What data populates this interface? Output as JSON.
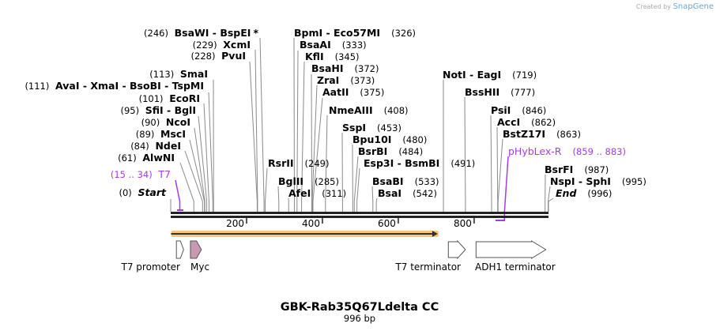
{
  "credit": {
    "created_by": "Created by",
    "brand": "SnapGene"
  },
  "title": "GBK-Rab35Q67Ldelta CC",
  "length_label": "996 bp",
  "sequence_length": 996,
  "left_sites": [
    {
      "pos": "(246)",
      "name": "BsaWI  - BspEI",
      "mark": "*",
      "bp": 246
    },
    {
      "pos": "(229)",
      "name": "XcmI",
      "bp": 229
    },
    {
      "pos": "(228)",
      "name": "PvuI",
      "bp": 228
    },
    {
      "pos": "(113)",
      "name": "SmaI",
      "bp": 113
    },
    {
      "pos": "(111)",
      "name": "AvaI  - XmaI  - BsoBI  - TspMI",
      "bp": 111
    },
    {
      "pos": "(101)",
      "name": "EcoRI",
      "bp": 101
    },
    {
      "pos": "(95)",
      "name": "SfiI  - BglI",
      "bp": 95
    },
    {
      "pos": "(90)",
      "name": "NcoI",
      "bp": 90
    },
    {
      "pos": "(89)",
      "name": "MscI",
      "bp": 89
    },
    {
      "pos": "(84)",
      "name": "NdeI",
      "bp": 84
    },
    {
      "pos": "(61)",
      "name": "AlwNI",
      "bp": 61
    },
    {
      "pos": "(15 .. 34)",
      "name": "T7",
      "bp": 24,
      "primer": true
    },
    {
      "pos": "(0)",
      "name": "Start",
      "bp": 0,
      "italic": true
    }
  ],
  "right_sites": [
    {
      "name": "BpmI  - Eco57MI",
      "pos": "(326)",
      "bp": 326
    },
    {
      "name": "BsaAI",
      "pos": "(333)",
      "bp": 333
    },
    {
      "name": "KflI",
      "pos": "(345)",
      "bp": 345
    },
    {
      "name": "BsaHI",
      "pos": "(372)",
      "bp": 372
    },
    {
      "name": "ZraI",
      "pos": "(373)",
      "bp": 373
    },
    {
      "name": "AatII",
      "pos": "(375)",
      "bp": 375
    },
    {
      "name": "NmeAIII",
      "pos": "(408)",
      "bp": 408
    },
    {
      "name": "SspI",
      "pos": "(453)",
      "bp": 453
    },
    {
      "name": "Bpu10I",
      "pos": "(480)",
      "bp": 480
    },
    {
      "name": "BsrBI",
      "pos": "(484)",
      "bp": 484
    },
    {
      "name": "Esp3I  - BsmBI",
      "pos": "(491)",
      "bp": 491
    },
    {
      "name": "RsrII",
      "pos": "(249)",
      "bp": 249
    },
    {
      "name": "BglII",
      "pos": "(285)",
      "bp": 285
    },
    {
      "name": "AfeI",
      "pos": "(311)",
      "bp": 311
    },
    {
      "name": "BsaBI",
      "pos": "(533)",
      "bp": 533
    },
    {
      "name": "BsaI",
      "pos": "(542)",
      "bp": 542
    },
    {
      "name": "NotI  - EagI",
      "pos": "(719)",
      "bp": 719
    },
    {
      "name": "BssHII",
      "pos": "(777)",
      "bp": 777
    },
    {
      "name": "PsiI",
      "pos": "(846)",
      "bp": 846
    },
    {
      "name": "AccI",
      "pos": "(862)",
      "bp": 862
    },
    {
      "name": "BstZ17I",
      "pos": "(863)",
      "bp": 863
    },
    {
      "name": "pHybLex-R",
      "pos": "(859 .. 883)",
      "bp": 880,
      "primer": true
    },
    {
      "name": "BsrFI",
      "pos": "(987)",
      "bp": 987
    },
    {
      "name": "NspI  - SphI",
      "pos": "(995)",
      "bp": 995
    },
    {
      "name": "End",
      "pos": "(996)",
      "bp": 996,
      "italic": true
    }
  ],
  "ticks": [
    200,
    400,
    600,
    800
  ],
  "orf": {
    "start": 1,
    "end": 702,
    "color": "#f9c77a"
  },
  "features": [
    {
      "name": "T7 promoter",
      "start": 15,
      "end": 34,
      "color": "#ffffff"
    },
    {
      "name": "Myc",
      "start": 52,
      "end": 81,
      "color": "#c999b4"
    },
    {
      "name": "T7 terminator",
      "start": 732,
      "end": 777,
      "color": "#ffffff"
    },
    {
      "name": "ADH1 terminator",
      "start": 805,
      "end": 989,
      "color": "#ffffff"
    }
  ],
  "primer_color": "#a43be6"
}
